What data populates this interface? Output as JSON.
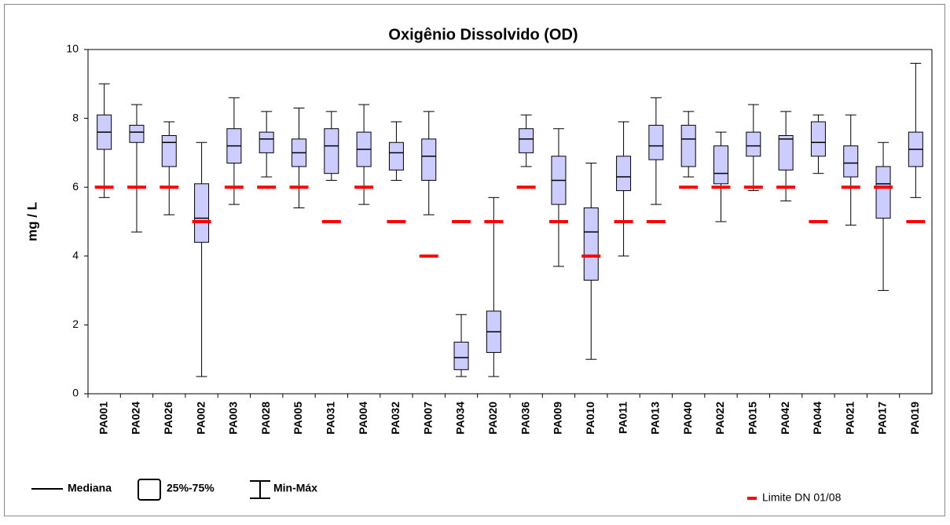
{
  "chart_data": {
    "type": "box",
    "title": "Oxigênio Dissolvido (OD)",
    "y_label": "mg / L",
    "categories": [
      "PA001",
      "PA024",
      "PA026",
      "PA002",
      "PA003",
      "PA028",
      "PA005",
      "PA031",
      "PA004",
      "PA032",
      "PA007",
      "PA034",
      "PA020",
      "PA036",
      "PA009",
      "PA010",
      "PA011",
      "PA013",
      "PA040",
      "PA022",
      "PA015",
      "PA042",
      "PA044",
      "PA021",
      "PA017",
      "PA019"
    ],
    "box_color": "#ccccff",
    "min": [
      5.7,
      4.7,
      5.2,
      0.5,
      5.5,
      6.3,
      5.4,
      6.2,
      5.5,
      6.2,
      5.2,
      0.5,
      0.5,
      6.6,
      3.7,
      1.0,
      4.0,
      5.5,
      6.3,
      5.0,
      5.9,
      5.6,
      6.4,
      4.9,
      3.0,
      5.7
    ],
    "q1": [
      7.1,
      7.3,
      6.6,
      4.4,
      6.7,
      7.0,
      6.6,
      6.4,
      6.6,
      6.5,
      6.2,
      0.7,
      1.2,
      7.0,
      5.5,
      3.3,
      5.9,
      6.8,
      6.6,
      6.1,
      6.9,
      6.5,
      6.9,
      6.3,
      5.1,
      6.6
    ],
    "median": [
      7.6,
      7.6,
      7.3,
      5.1,
      7.2,
      7.4,
      7.0,
      7.2,
      7.1,
      7.0,
      6.9,
      1.05,
      1.8,
      7.4,
      6.2,
      4.7,
      6.3,
      7.2,
      7.4,
      6.4,
      7.2,
      7.4,
      7.3,
      6.7,
      6.1,
      7.1
    ],
    "q3": [
      8.1,
      7.8,
      7.5,
      6.1,
      7.7,
      7.6,
      7.4,
      7.7,
      7.6,
      7.3,
      7.4,
      1.5,
      2.4,
      7.7,
      6.9,
      5.4,
      6.9,
      7.8,
      7.8,
      7.2,
      7.6,
      7.5,
      7.9,
      7.2,
      6.6,
      7.6
    ],
    "max": [
      9.0,
      8.4,
      7.9,
      7.3,
      8.6,
      8.2,
      8.3,
      8.2,
      8.4,
      7.9,
      8.2,
      2.3,
      5.7,
      8.1,
      7.7,
      6.7,
      7.9,
      8.6,
      8.2,
      7.6,
      8.4,
      8.2,
      8.1,
      8.1,
      7.3,
      9.6
    ],
    "limit_series": {
      "name": "Limite DN 01/08",
      "color": "#ff0000",
      "values": [
        6,
        6,
        6,
        5,
        6,
        6,
        6,
        5,
        6,
        5,
        4,
        5,
        5,
        6,
        5,
        4,
        5,
        5,
        6,
        6,
        6,
        6,
        5,
        6,
        6,
        5
      ]
    },
    "legend_key": [
      "Mediana",
      "25%-75%",
      "Min-Máx"
    ],
    "ylim": [
      0,
      10
    ],
    "yticks": [
      0,
      2,
      4,
      6,
      8,
      10
    ],
    "grid": false
  }
}
